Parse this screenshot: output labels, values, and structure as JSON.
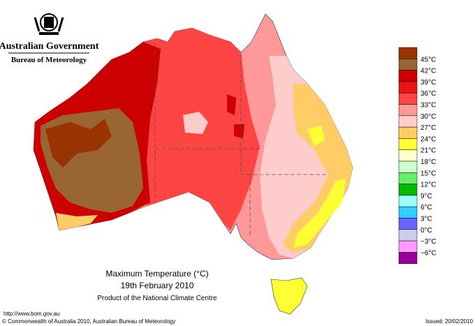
{
  "header": {
    "title": "Australian Government",
    "subtitle": "Bureau of Meteorology"
  },
  "caption": {
    "title": "Maximum Temperature (°C)",
    "date": "19th February 2010",
    "source": "Product of the National Climate Centre"
  },
  "legend": {
    "colors": [
      "#993300",
      "#996633",
      "#cc0000",
      "#ee1111",
      "#ff4444",
      "#ff9999",
      "#ffcccc",
      "#ffcc66",
      "#ffff33",
      "#ffffcc",
      "#ccffcc",
      "#66ee66",
      "#00bb00",
      "#99ffff",
      "#33ccff",
      "#6666ff",
      "#ccccee",
      "#ff99ff",
      "#990099"
    ],
    "labels": [
      "45°C",
      "42°C",
      "39°C",
      "36°C",
      "33°C",
      "30°C",
      "27°C",
      "24°C",
      "21°C",
      "18°C",
      "15°C",
      "12°C",
      "9°C",
      "6°C",
      "3°C",
      "0°C",
      "−3°C",
      "−6°C"
    ]
  },
  "footer": {
    "url": "http://www.bom.gov.au",
    "copyright": "© Commonwealth of Australia 2010, Australian Bureau of Meteorology",
    "issued": "Issued: 20/02/2010"
  }
}
